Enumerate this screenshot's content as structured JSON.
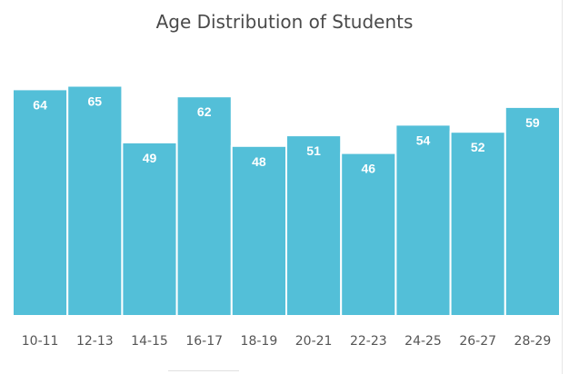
{
  "chart_data": {
    "type": "bar",
    "title": "Age Distribution of Students",
    "xlabel": "",
    "ylabel": "",
    "categories": [
      "10-11",
      "12-13",
      "14-15",
      "16-17",
      "18-19",
      "20-21",
      "22-23",
      "24-25",
      "26-27",
      "28-29"
    ],
    "values": [
      64,
      65,
      49,
      62,
      48,
      51,
      46,
      54,
      52,
      59
    ],
    "data_labels": [
      "64",
      "65",
      "49",
      "62",
      "48",
      "51",
      "46",
      "54",
      "52",
      "59"
    ],
    "ylim": [
      0,
      70
    ],
    "grid": false,
    "legend": "none",
    "bar_color": "#53bfd8"
  }
}
